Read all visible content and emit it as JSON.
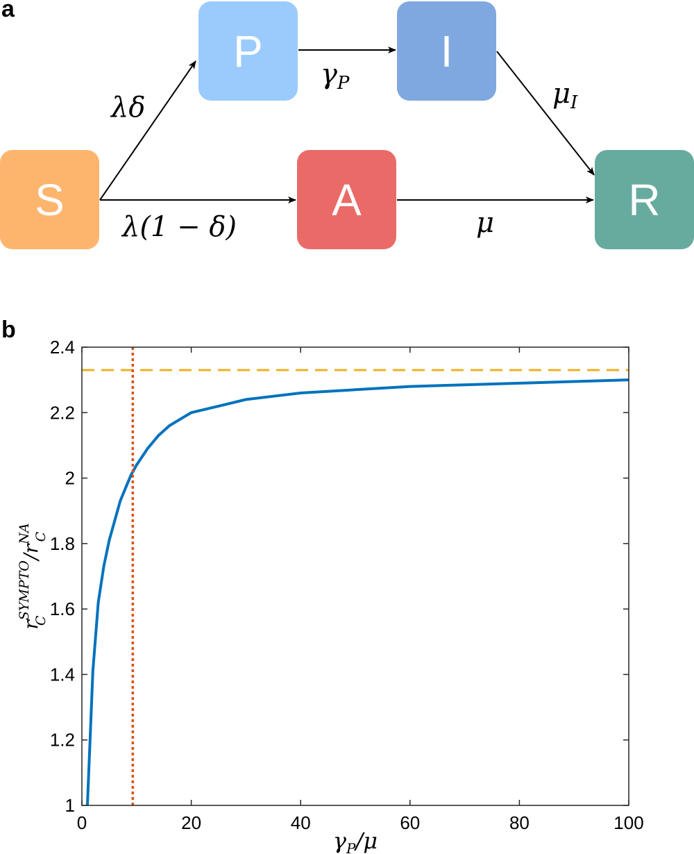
{
  "panel_a": {
    "label": "a",
    "compartments": [
      {
        "id": "S",
        "label": "S",
        "color": "#fdb56e"
      },
      {
        "id": "P",
        "label": "P",
        "color": "#9bcbfd"
      },
      {
        "id": "I",
        "label": "I",
        "color": "#80a8e0"
      },
      {
        "id": "A",
        "label": "A",
        "color": "#e96a67"
      },
      {
        "id": "R",
        "label": "R",
        "color": "#67ab9f"
      }
    ],
    "transitions": [
      {
        "from": "S",
        "to": "P",
        "rate": "λδ"
      },
      {
        "from": "S",
        "to": "A",
        "rate": "λ(1 − δ)"
      },
      {
        "from": "P",
        "to": "I",
        "rate": "γP"
      },
      {
        "from": "I",
        "to": "R",
        "rate": "μI"
      },
      {
        "from": "A",
        "to": "R",
        "rate": "μ"
      }
    ],
    "rate_parts": {
      "gamma": "γ",
      "gamma_sub": "P",
      "mu": "μ",
      "mu_sub": "I",
      "lambda_delta": "λδ",
      "lambda_one_minus_delta": "λ(1 − δ)"
    }
  },
  "panel_b": {
    "label": "b",
    "chart_data": {
      "type": "line",
      "title": "",
      "xlabel": "γP/μ",
      "ylabel": "rC^SYMPTO/rC^NA",
      "xlim": [
        0,
        100
      ],
      "ylim": [
        1,
        2.4
      ],
      "xticks": [
        "0",
        "20",
        "40",
        "60",
        "80",
        "100"
      ],
      "yticks": [
        "1",
        "1.2",
        "1.4",
        "1.6",
        "1.8",
        "2",
        "2.2",
        "2.4"
      ],
      "grid": false,
      "series": [
        {
          "style": "solid",
          "color": "#0072bd",
          "x": [
            1,
            1.5,
            2,
            3,
            4,
            5,
            6,
            7,
            8,
            9,
            10,
            12,
            14,
            16,
            18,
            20,
            25,
            30,
            35,
            40,
            50,
            60,
            70,
            80,
            90,
            100
          ],
          "y": [
            1.0,
            1.2,
            1.41,
            1.62,
            1.73,
            1.81,
            1.87,
            1.93,
            1.97,
            2.01,
            2.04,
            2.09,
            2.13,
            2.16,
            2.18,
            2.2,
            2.22,
            2.24,
            2.25,
            2.26,
            2.27,
            2.28,
            2.285,
            2.29,
            2.295,
            2.3
          ]
        },
        {
          "style": "dashed",
          "color": "#edb120",
          "x": [
            0,
            100
          ],
          "y": [
            2.33,
            2.33
          ]
        },
        {
          "style": "dotted",
          "color": "#d95319",
          "x": [
            9.3,
            9.3
          ],
          "y": [
            1,
            2.4
          ]
        }
      ]
    }
  }
}
